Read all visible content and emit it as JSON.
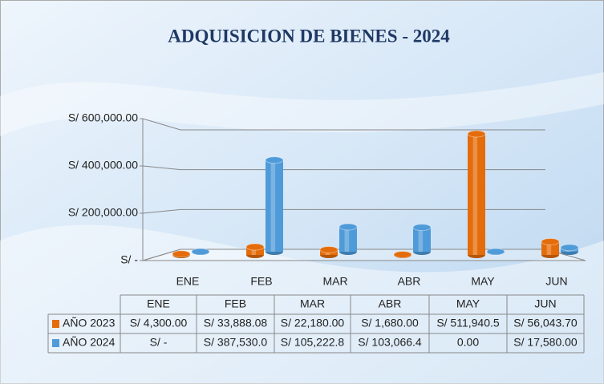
{
  "chart_data": {
    "type": "bar",
    "title": "ADQUISICION DE BIENES - 2024",
    "categories": [
      "ENE",
      "FEB",
      "MAR",
      "ABR",
      "MAY",
      "JUN"
    ],
    "series": [
      {
        "name": "AÑO 2023",
        "color": "#e46c0a",
        "values": [
          4300,
          33888.08,
          22180,
          1680,
          511940.5,
          56043.7
        ],
        "value_labels": [
          "S/ 4,300.00",
          "S/ 33,888.08",
          "S/ 22,180.00",
          "S/ 1,680.00",
          "S/ 511,940.5",
          "S/ 56,043.70"
        ]
      },
      {
        "name": "AÑO 2024",
        "color": "#4f9bd9",
        "values": [
          0,
          387530.0,
          105222.8,
          103066.4,
          0,
          17580
        ],
        "value_labels": [
          "S/ -",
          "S/ 387,530.0",
          "S/ 105,222.8",
          "S/ 103,066.4",
          "0.00",
          "S/ 17,580.00"
        ]
      }
    ],
    "ylim": [
      0,
      600000
    ],
    "yticks": [
      {
        "value": 0,
        "label": "S/ -"
      },
      {
        "value": 200000,
        "label": "S/ 200,000.00"
      },
      {
        "value": 400000,
        "label": "S/ 400,000.00"
      },
      {
        "value": 600000,
        "label": "S/ 600,000.00"
      }
    ],
    "grid": true
  }
}
